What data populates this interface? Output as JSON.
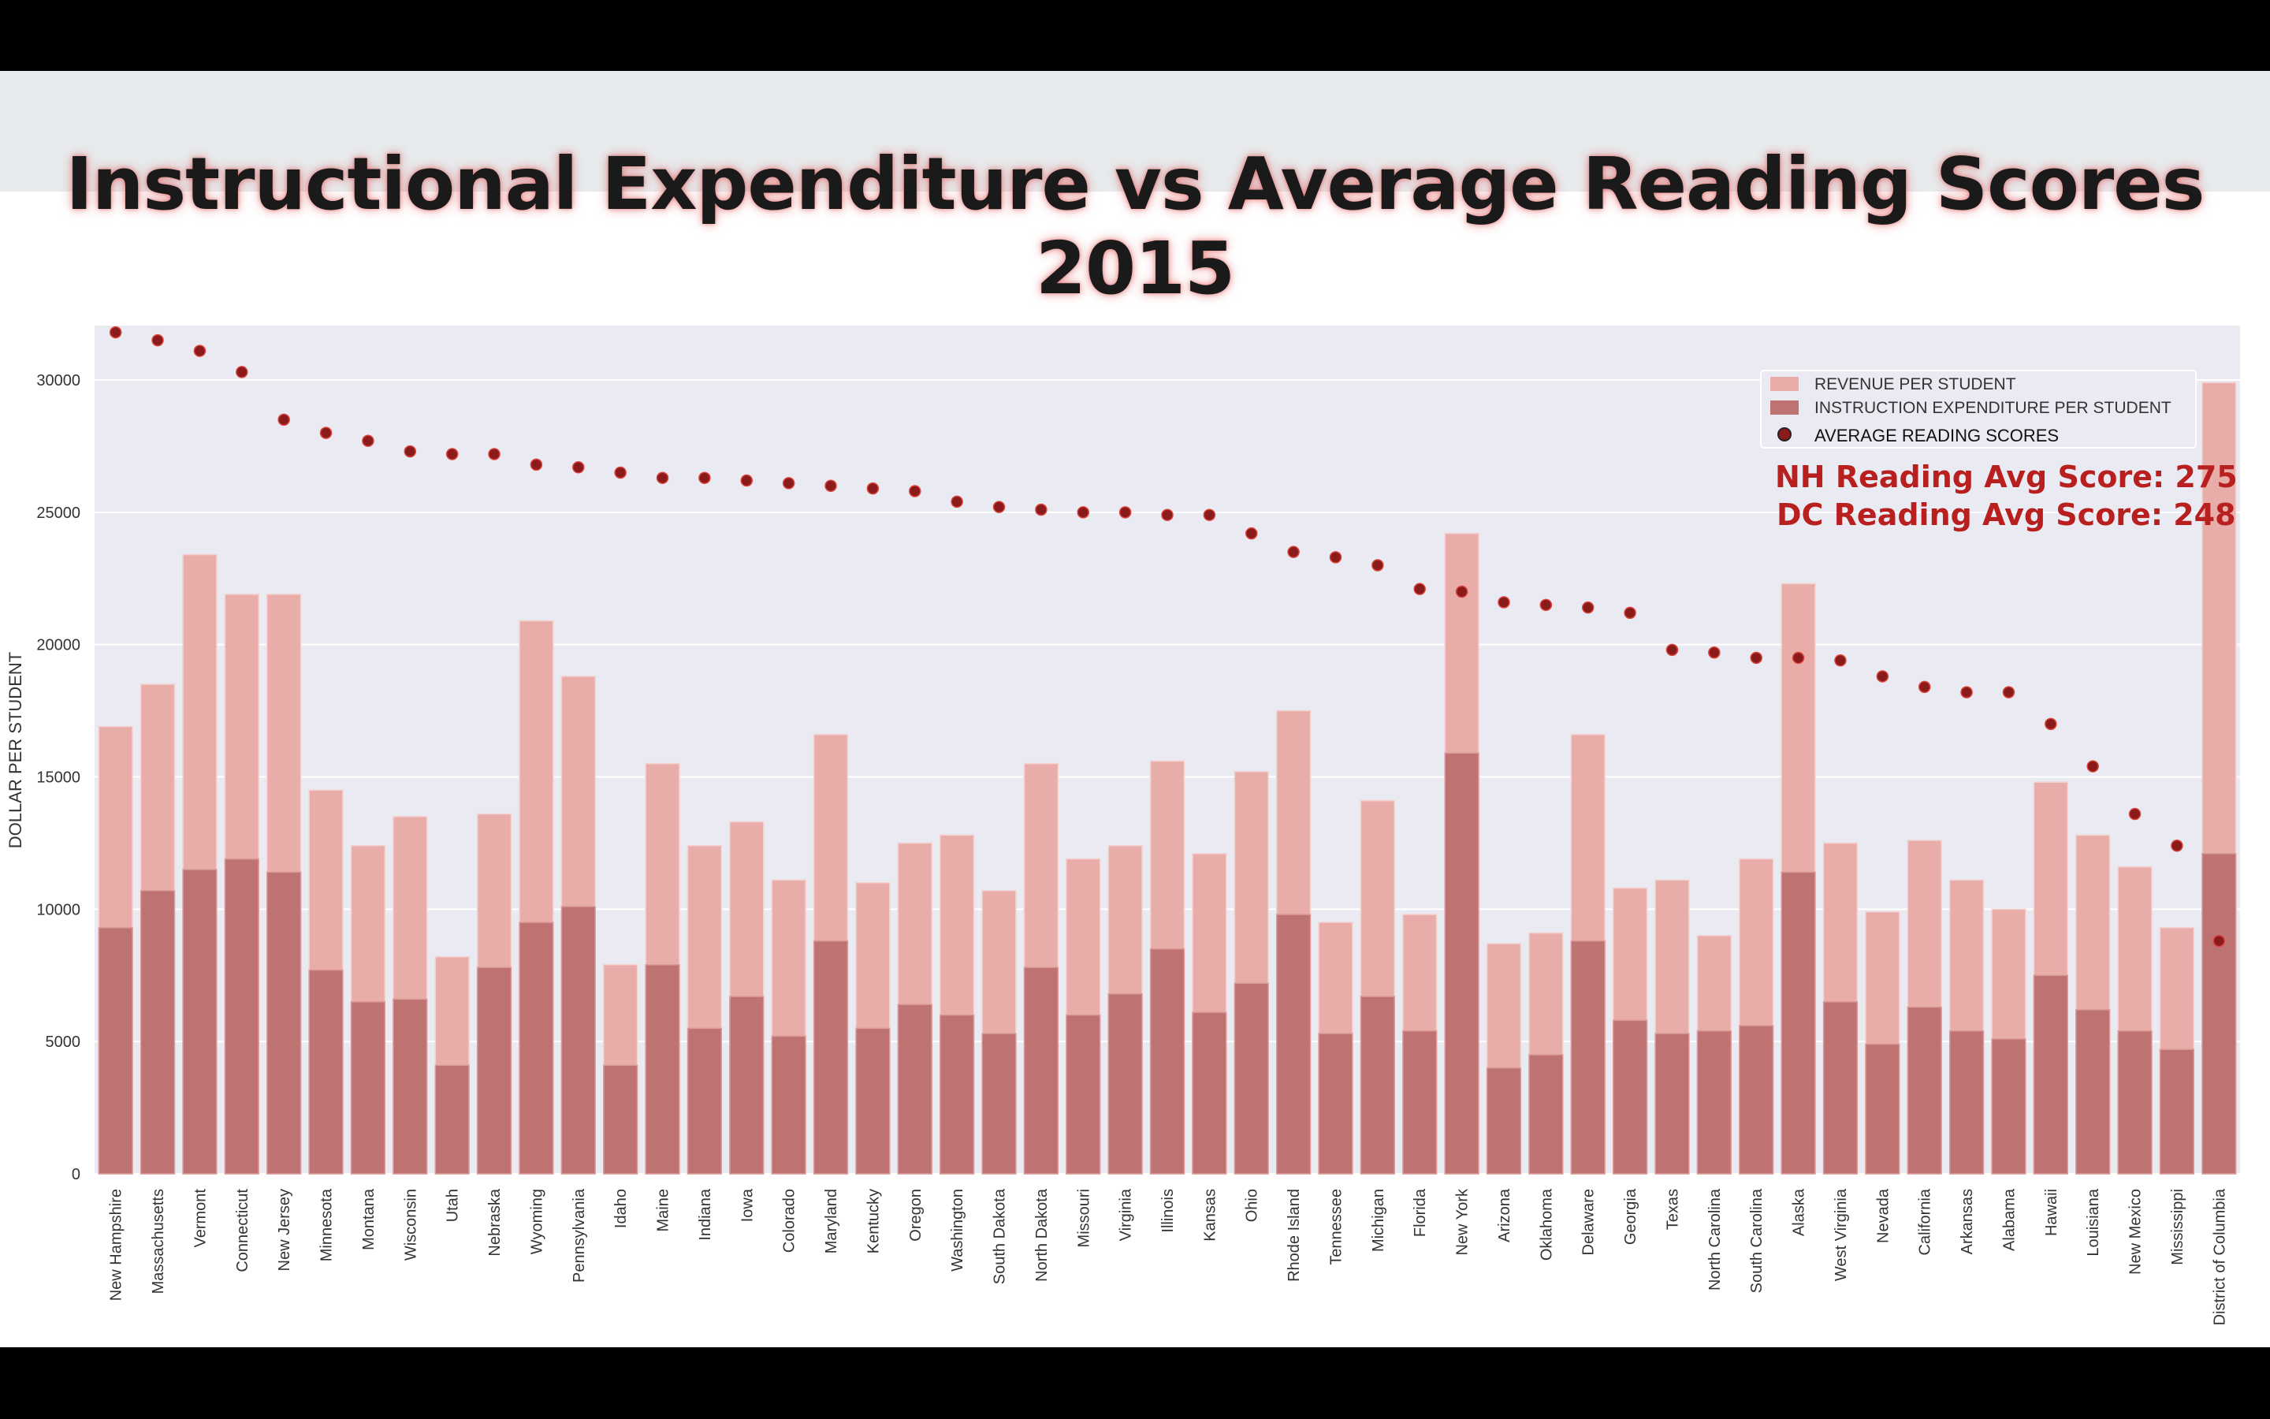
{
  "chart_data": {
    "type": "bar",
    "title": "Instructional Expenditure vs Average Reading Scores 2015",
    "xlabel": "",
    "ylabel": "DOLLAR PER STUDENT",
    "ylim": [
      0,
      32000
    ],
    "yticks": [
      0,
      5000,
      10000,
      15000,
      20000,
      25000,
      30000
    ],
    "grid": true,
    "legend_position": "top-right",
    "categories": [
      "New Hampshire",
      "Massachusetts",
      "Vermont",
      "Connecticut",
      "New Jersey",
      "Minnesota",
      "Montana",
      "Wisconsin",
      "Utah",
      "Nebraska",
      "Wyoming",
      "Pennsylvania",
      "Idaho",
      "Maine",
      "Indiana",
      "Iowa",
      "Colorado",
      "Maryland",
      "Kentucky",
      "Oregon",
      "Washington",
      "South Dakota",
      "North Dakota",
      "Missouri",
      "Virginia",
      "Illinois",
      "Kansas",
      "Ohio",
      "Rhode Island",
      "Tennessee",
      "Michigan",
      "Florida",
      "New York",
      "Arizona",
      "Oklahoma",
      "Delaware",
      "Georgia",
      "Texas",
      "North Carolina",
      "South Carolina",
      "Alaska",
      "West Virginia",
      "Nevada",
      "California",
      "Arkansas",
      "Alabama",
      "Hawaii",
      "Louisiana",
      "New Mexico",
      "Mississippi",
      "District of Columbia"
    ],
    "series": [
      {
        "name": "REVENUE PER STUDENT",
        "kind": "bar",
        "color": "#e8aca9",
        "values": [
          16900,
          18500,
          23400,
          21900,
          21900,
          14500,
          12400,
          13500,
          8200,
          13600,
          20900,
          18800,
          7900,
          15500,
          12400,
          13300,
          11100,
          16600,
          11000,
          12500,
          12800,
          10700,
          15500,
          11900,
          12400,
          15600,
          12100,
          15200,
          17500,
          9500,
          14100,
          9800,
          24200,
          8700,
          9100,
          16600,
          10800,
          11100,
          9000,
          11900,
          22300,
          12500,
          9900,
          12600,
          11100,
          10000,
          14800,
          12800,
          11600,
          9300,
          29900
        ]
      },
      {
        "name": "INSTRUCTION EXPENDITURE PER STUDENT",
        "kind": "bar",
        "color": "#bf7272",
        "values": [
          9300,
          10700,
          11500,
          11900,
          11400,
          7700,
          6500,
          6600,
          4100,
          7800,
          9500,
          10100,
          4100,
          7900,
          5500,
          6700,
          5200,
          8800,
          5500,
          6400,
          6000,
          5300,
          7800,
          6000,
          6800,
          8500,
          6100,
          7200,
          9800,
          5300,
          6700,
          5400,
          15900,
          4000,
          4500,
          8800,
          5800,
          5300,
          5400,
          5600,
          11400,
          6500,
          4900,
          6300,
          5400,
          5100,
          7500,
          6200,
          5400,
          4700,
          12100
        ]
      },
      {
        "name": "AVERAGE READING SCORES",
        "kind": "scatter",
        "color": "#8b1a1a",
        "values": [
          31800,
          31500,
          31100,
          30300,
          28500,
          28000,
          27700,
          27300,
          27200,
          27200,
          26800,
          26700,
          26500,
          26300,
          26300,
          26200,
          26100,
          26000,
          25900,
          25800,
          25400,
          25200,
          25100,
          25000,
          25000,
          24900,
          24900,
          24200,
          23500,
          23300,
          23000,
          22100,
          22000,
          21600,
          21500,
          21400,
          21200,
          19800,
          19700,
          19500,
          19500,
          19400,
          18800,
          18400,
          18200,
          18200,
          17000,
          15400,
          13600,
          12400,
          8800
        ]
      }
    ],
    "annotations": [
      "NH  Reading Avg Score: 275",
      "DC Reading  Avg Score: 248"
    ],
    "colors": {
      "plot_bg": "#eaeaf2",
      "grid": "#ffffff",
      "annotation": "#b8201f",
      "axis_text": "#333333"
    }
  }
}
